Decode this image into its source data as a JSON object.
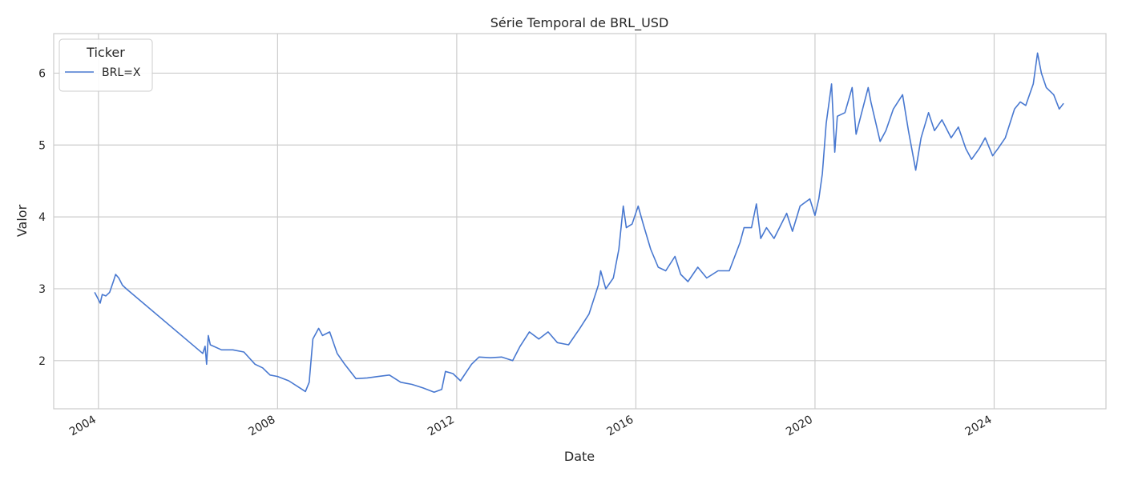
{
  "chart_data": {
    "type": "line",
    "title": "Série Temporal de BRL_USD",
    "xlabel": "Date",
    "ylabel": "Valor",
    "xlim": [
      "2003-01-01",
      "2026-07-01"
    ],
    "ylim": [
      1.33,
      6.55
    ],
    "x_ticks": [
      "2004",
      "2008",
      "2012",
      "2016",
      "2020",
      "2024"
    ],
    "y_ticks": [
      "2",
      "3",
      "4",
      "5",
      "6"
    ],
    "grid": true,
    "legend": {
      "title": "Ticker",
      "placement": "top-left"
    },
    "series": [
      {
        "name": "BRL=X",
        "color": "#4878d0",
        "points": [
          [
            "2003-12-01",
            2.95
          ],
          [
            "2004-01-01",
            2.85
          ],
          [
            "2004-01-15",
            2.8
          ],
          [
            "2004-02-01",
            2.92
          ],
          [
            "2004-03-01",
            2.9
          ],
          [
            "2004-04-01",
            2.95
          ],
          [
            "2004-05-01",
            3.1
          ],
          [
            "2004-05-20",
            3.2
          ],
          [
            "2004-06-15",
            3.15
          ],
          [
            "2004-07-15",
            3.05
          ],
          [
            "2004-08-15",
            3.0
          ],
          [
            "2006-05-01",
            2.1
          ],
          [
            "2006-05-20",
            2.2
          ],
          [
            "2006-06-01",
            1.95
          ],
          [
            "2006-06-15",
            2.35
          ],
          [
            "2006-07-01",
            2.22
          ],
          [
            "2006-10-01",
            2.15
          ],
          [
            "2007-01-01",
            2.15
          ],
          [
            "2007-04-01",
            2.12
          ],
          [
            "2007-07-01",
            1.95
          ],
          [
            "2007-09-01",
            1.9
          ],
          [
            "2007-10-01",
            1.85
          ],
          [
            "2007-11-01",
            1.8
          ],
          [
            "2008-01-01",
            1.78
          ],
          [
            "2008-04-01",
            1.72
          ],
          [
            "2008-07-01",
            1.62
          ],
          [
            "2008-08-15",
            1.57
          ],
          [
            "2008-09-15",
            1.7
          ],
          [
            "2008-10-15",
            2.3
          ],
          [
            "2008-12-01",
            2.45
          ],
          [
            "2009-01-01",
            2.35
          ],
          [
            "2009-03-01",
            2.4
          ],
          [
            "2009-05-01",
            2.1
          ],
          [
            "2009-07-01",
            1.95
          ],
          [
            "2009-10-01",
            1.75
          ],
          [
            "2010-01-01",
            1.76
          ],
          [
            "2010-04-01",
            1.78
          ],
          [
            "2010-07-01",
            1.8
          ],
          [
            "2010-10-01",
            1.7
          ],
          [
            "2011-01-01",
            1.67
          ],
          [
            "2011-04-01",
            1.62
          ],
          [
            "2011-07-01",
            1.56
          ],
          [
            "2011-09-01",
            1.6
          ],
          [
            "2011-10-01",
            1.85
          ],
          [
            "2011-12-01",
            1.82
          ],
          [
            "2012-02-01",
            1.72
          ],
          [
            "2012-05-01",
            1.95
          ],
          [
            "2012-07-01",
            2.05
          ],
          [
            "2012-10-01",
            2.04
          ],
          [
            "2013-01-01",
            2.05
          ],
          [
            "2013-04-01",
            2.0
          ],
          [
            "2013-06-01",
            2.2
          ],
          [
            "2013-08-15",
            2.4
          ],
          [
            "2013-11-01",
            2.3
          ],
          [
            "2014-01-15",
            2.4
          ],
          [
            "2014-04-01",
            2.25
          ],
          [
            "2014-07-01",
            2.22
          ],
          [
            "2014-10-01",
            2.45
          ],
          [
            "2014-12-15",
            2.65
          ],
          [
            "2015-03-01",
            3.05
          ],
          [
            "2015-03-20",
            3.25
          ],
          [
            "2015-05-01",
            3.0
          ],
          [
            "2015-07-01",
            3.15
          ],
          [
            "2015-08-15",
            3.55
          ],
          [
            "2015-09-20",
            4.15
          ],
          [
            "2015-10-15",
            3.85
          ],
          [
            "2015-12-01",
            3.9
          ],
          [
            "2016-01-20",
            4.15
          ],
          [
            "2016-03-01",
            3.9
          ],
          [
            "2016-05-01",
            3.55
          ],
          [
            "2016-07-01",
            3.3
          ],
          [
            "2016-09-01",
            3.25
          ],
          [
            "2016-11-15",
            3.45
          ],
          [
            "2017-01-01",
            3.2
          ],
          [
            "2017-03-01",
            3.1
          ],
          [
            "2017-05-20",
            3.3
          ],
          [
            "2017-08-01",
            3.15
          ],
          [
            "2017-11-01",
            3.25
          ],
          [
            "2018-02-01",
            3.25
          ],
          [
            "2018-05-01",
            3.65
          ],
          [
            "2018-06-01",
            3.85
          ],
          [
            "2018-08-01",
            3.85
          ],
          [
            "2018-09-10",
            4.18
          ],
          [
            "2018-10-15",
            3.7
          ],
          [
            "2018-12-01",
            3.85
          ],
          [
            "2019-02-01",
            3.7
          ],
          [
            "2019-05-15",
            4.05
          ],
          [
            "2019-07-01",
            3.8
          ],
          [
            "2019-09-01",
            4.15
          ],
          [
            "2019-11-20",
            4.25
          ],
          [
            "2020-01-01",
            4.02
          ],
          [
            "2020-02-01",
            4.25
          ],
          [
            "2020-03-01",
            4.6
          ],
          [
            "2020-04-01",
            5.3
          ],
          [
            "2020-05-15",
            5.85
          ],
          [
            "2020-06-10",
            4.9
          ],
          [
            "2020-07-01",
            5.4
          ],
          [
            "2020-09-01",
            5.45
          ],
          [
            "2020-10-30",
            5.8
          ],
          [
            "2020-12-01",
            5.15
          ],
          [
            "2021-03-10",
            5.8
          ],
          [
            "2021-04-01",
            5.6
          ],
          [
            "2021-06-15",
            5.05
          ],
          [
            "2021-08-01",
            5.2
          ],
          [
            "2021-10-01",
            5.5
          ],
          [
            "2021-12-15",
            5.7
          ],
          [
            "2022-02-01",
            5.2
          ],
          [
            "2022-04-01",
            4.65
          ],
          [
            "2022-05-15",
            5.1
          ],
          [
            "2022-07-15",
            5.45
          ],
          [
            "2022-09-01",
            5.2
          ],
          [
            "2022-11-01",
            5.35
          ],
          [
            "2023-01-15",
            5.1
          ],
          [
            "2023-03-15",
            5.25
          ],
          [
            "2023-05-15",
            4.95
          ],
          [
            "2023-07-01",
            4.8
          ],
          [
            "2023-09-01",
            4.95
          ],
          [
            "2023-10-20",
            5.1
          ],
          [
            "2023-12-20",
            4.85
          ],
          [
            "2024-02-01",
            4.95
          ],
          [
            "2024-04-01",
            5.1
          ],
          [
            "2024-06-15",
            5.5
          ],
          [
            "2024-08-01",
            5.6
          ],
          [
            "2024-09-15",
            5.55
          ],
          [
            "2024-11-15",
            5.85
          ],
          [
            "2024-12-20",
            6.28
          ],
          [
            "2025-01-20",
            6.0
          ],
          [
            "2025-03-01",
            5.8
          ],
          [
            "2025-05-01",
            5.7
          ],
          [
            "2025-06-15",
            5.5
          ],
          [
            "2025-07-20",
            5.58
          ]
        ]
      }
    ]
  }
}
